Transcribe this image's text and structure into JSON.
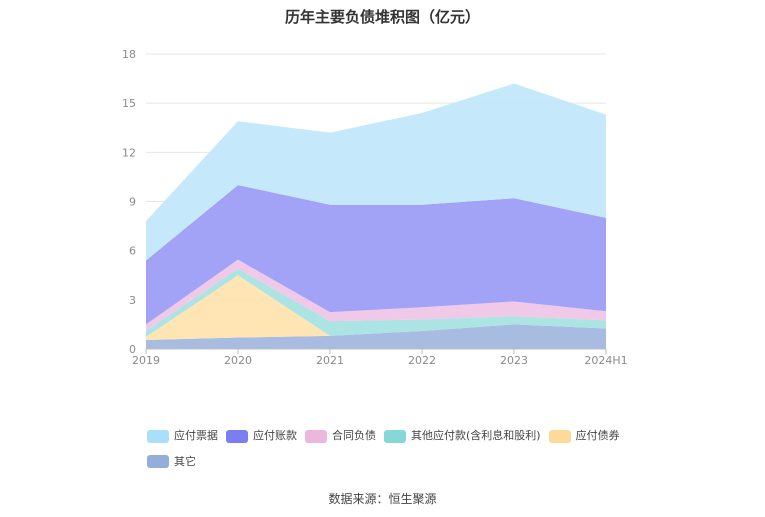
{
  "chart_data": {
    "type": "area",
    "stacked": true,
    "title": "历年主要负债堆积图（亿元）",
    "categories": [
      "2019",
      "2020",
      "2021",
      "2022",
      "2023",
      "2024H1"
    ],
    "ylim": [
      0,
      18
    ],
    "yticks": [
      0,
      3,
      6,
      9,
      12,
      15,
      18
    ],
    "grid": true,
    "legend_position": "bottom",
    "series": [
      {
        "name": "其它",
        "color": "#a3b8e0",
        "values": [
          0.55,
          0.7,
          0.8,
          1.1,
          1.5,
          1.25
        ]
      },
      {
        "name": "应付债券",
        "color": "#ffe3b0",
        "values": [
          0.2,
          3.8,
          0.0,
          0.0,
          0.0,
          0.0
        ]
      },
      {
        "name": "其他应付款(含利息和股利)",
        "color": "#a8e2e2",
        "values": [
          0.35,
          0.4,
          0.9,
          0.7,
          0.5,
          0.5
        ]
      },
      {
        "name": "合同负债",
        "color": "#eec6e6",
        "values": [
          0.4,
          0.55,
          0.55,
          0.75,
          0.9,
          0.55
        ]
      },
      {
        "name": "应付账款",
        "color": "#9d9df7",
        "values": [
          3.9,
          4.55,
          6.55,
          6.25,
          6.3,
          5.7
        ]
      },
      {
        "name": "应付票据",
        "color": "#c2e8fb",
        "values": [
          2.4,
          3.9,
          4.4,
          5.6,
          7.0,
          6.3
        ]
      }
    ],
    "legend_order": [
      "应付票据",
      "应付账款",
      "合同负债",
      "其他应付款(含利息和股利)",
      "应付债券",
      "其它"
    ],
    "legend_colors": {
      "应付票据": "#a9dff9",
      "应付账款": "#7b7ef0",
      "合同负债": "#ebb7dd",
      "其他应付款(含利息和股利)": "#86d7d7",
      "应付债券": "#fdd99a",
      "其它": "#94aedc"
    }
  },
  "footer": {
    "source": "数据来源：恒生聚源"
  }
}
